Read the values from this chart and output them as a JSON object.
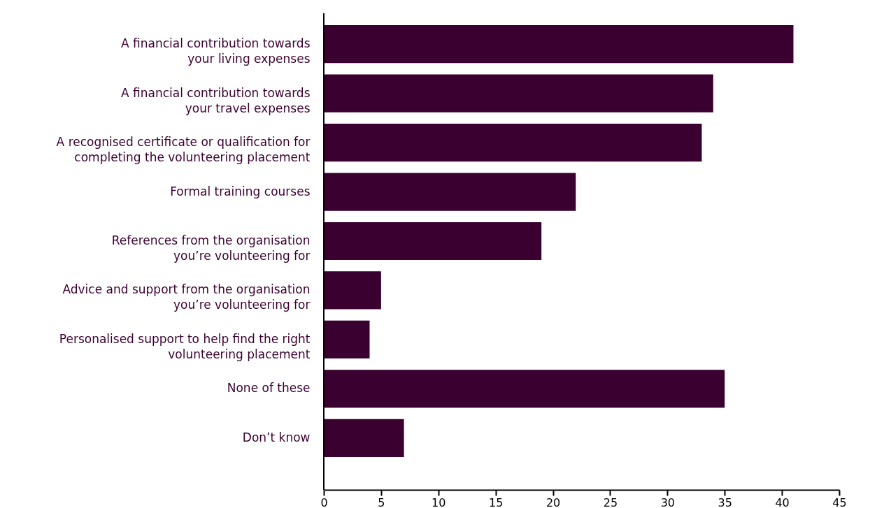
{
  "chart_data": {
    "type": "bar",
    "orientation": "horizontal",
    "color": "#3a0030",
    "categories": [
      "A financial contribution towards\nyour living expenses",
      "A financial contribution towards\nyour travel expenses",
      "A recognised certificate or qualification for\ncompleting the volunteering placement",
      "Formal training courses",
      "References from the organisation\nyou’re volunteering for",
      "Advice and support from the organisation\nyou’re volunteering for",
      "Personalised support to help find the right\nvolunteering placement",
      "None of these",
      "Don’t know"
    ],
    "values": [
      41,
      34,
      33,
      22,
      19,
      5,
      4,
      35,
      7
    ],
    "xlim": [
      0,
      45
    ],
    "xticks": [
      0,
      5,
      10,
      15,
      20,
      25,
      30,
      35,
      40,
      45
    ],
    "grid": false
  }
}
